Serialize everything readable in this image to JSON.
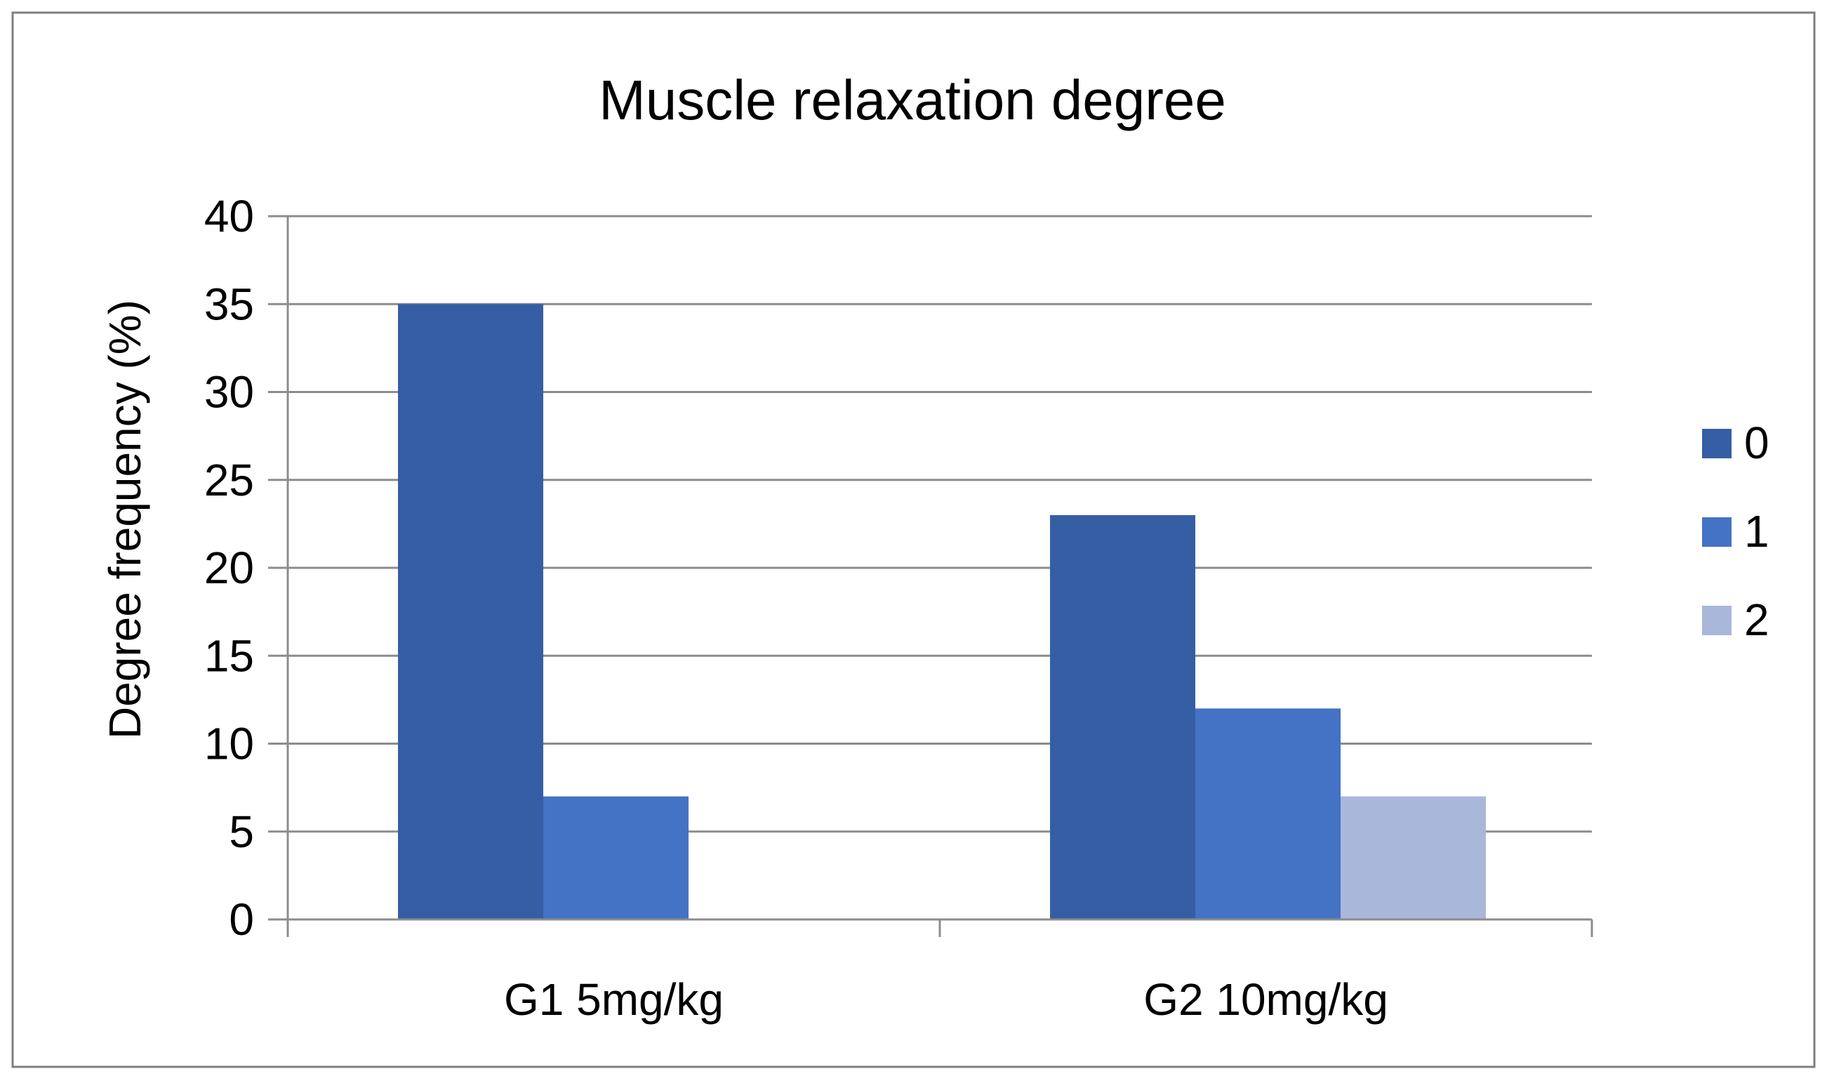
{
  "chart_data": {
    "type": "bar",
    "title": "Muscle relaxation degree",
    "xlabel": "",
    "ylabel": "Degree frequency  (%)",
    "categories": [
      "G1 5mg/kg",
      "G2 10mg/kg"
    ],
    "series": [
      {
        "name": "0",
        "values": [
          35,
          23
        ],
        "color": "#365EA5"
      },
      {
        "name": "1",
        "values": [
          7,
          12
        ],
        "color": "#4472C4"
      },
      {
        "name": "2",
        "values": [
          null,
          7
        ],
        "color": "#A9B7DA"
      }
    ],
    "ylim": [
      0,
      40
    ],
    "yticks": [
      "0",
      "5",
      "10",
      "15",
      "20",
      "25",
      "30",
      "35",
      "40"
    ],
    "grid": true,
    "legend_position": "right"
  },
  "colors": {
    "gridline": "#8C8C8C",
    "axis": "#8C8C8C",
    "frame": "#7F7F7F"
  }
}
